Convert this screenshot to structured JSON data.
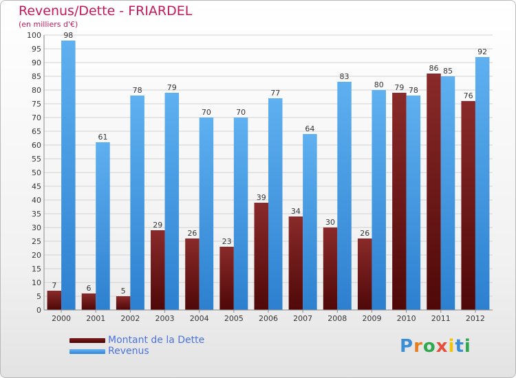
{
  "title": "Revenus/Dette - FRIARDEL",
  "subtitle": "(en milliers d'€)",
  "logo": {
    "letters": [
      "P",
      "r",
      "o",
      "x",
      "i",
      "t",
      "i"
    ],
    "colors": [
      "#3b8ed6",
      "#e67e22",
      "#2fa84f",
      "#e74c3c",
      "#f1c40f",
      "#3b8ed6",
      "#2fa84f"
    ]
  },
  "chart_data": {
    "type": "bar",
    "categories": [
      "2000",
      "2001",
      "2002",
      "2003",
      "2004",
      "2005",
      "2006",
      "2007",
      "2008",
      "2009",
      "2010",
      "2011",
      "2012"
    ],
    "series": [
      {
        "name": "Montant de la Dette",
        "color": "#7a1d1d",
        "values": [
          7,
          6,
          5,
          29,
          26,
          23,
          39,
          34,
          30,
          26,
          79,
          86,
          76
        ]
      },
      {
        "name": "Revenus",
        "color": "#4aa3e8",
        "values": [
          98,
          61,
          78,
          79,
          70,
          70,
          77,
          64,
          83,
          80,
          78,
          85,
          92
        ]
      }
    ],
    "ylim": [
      0,
      100
    ],
    "ytick_step": 5,
    "grid": true,
    "legend_position": "bottom-left"
  }
}
